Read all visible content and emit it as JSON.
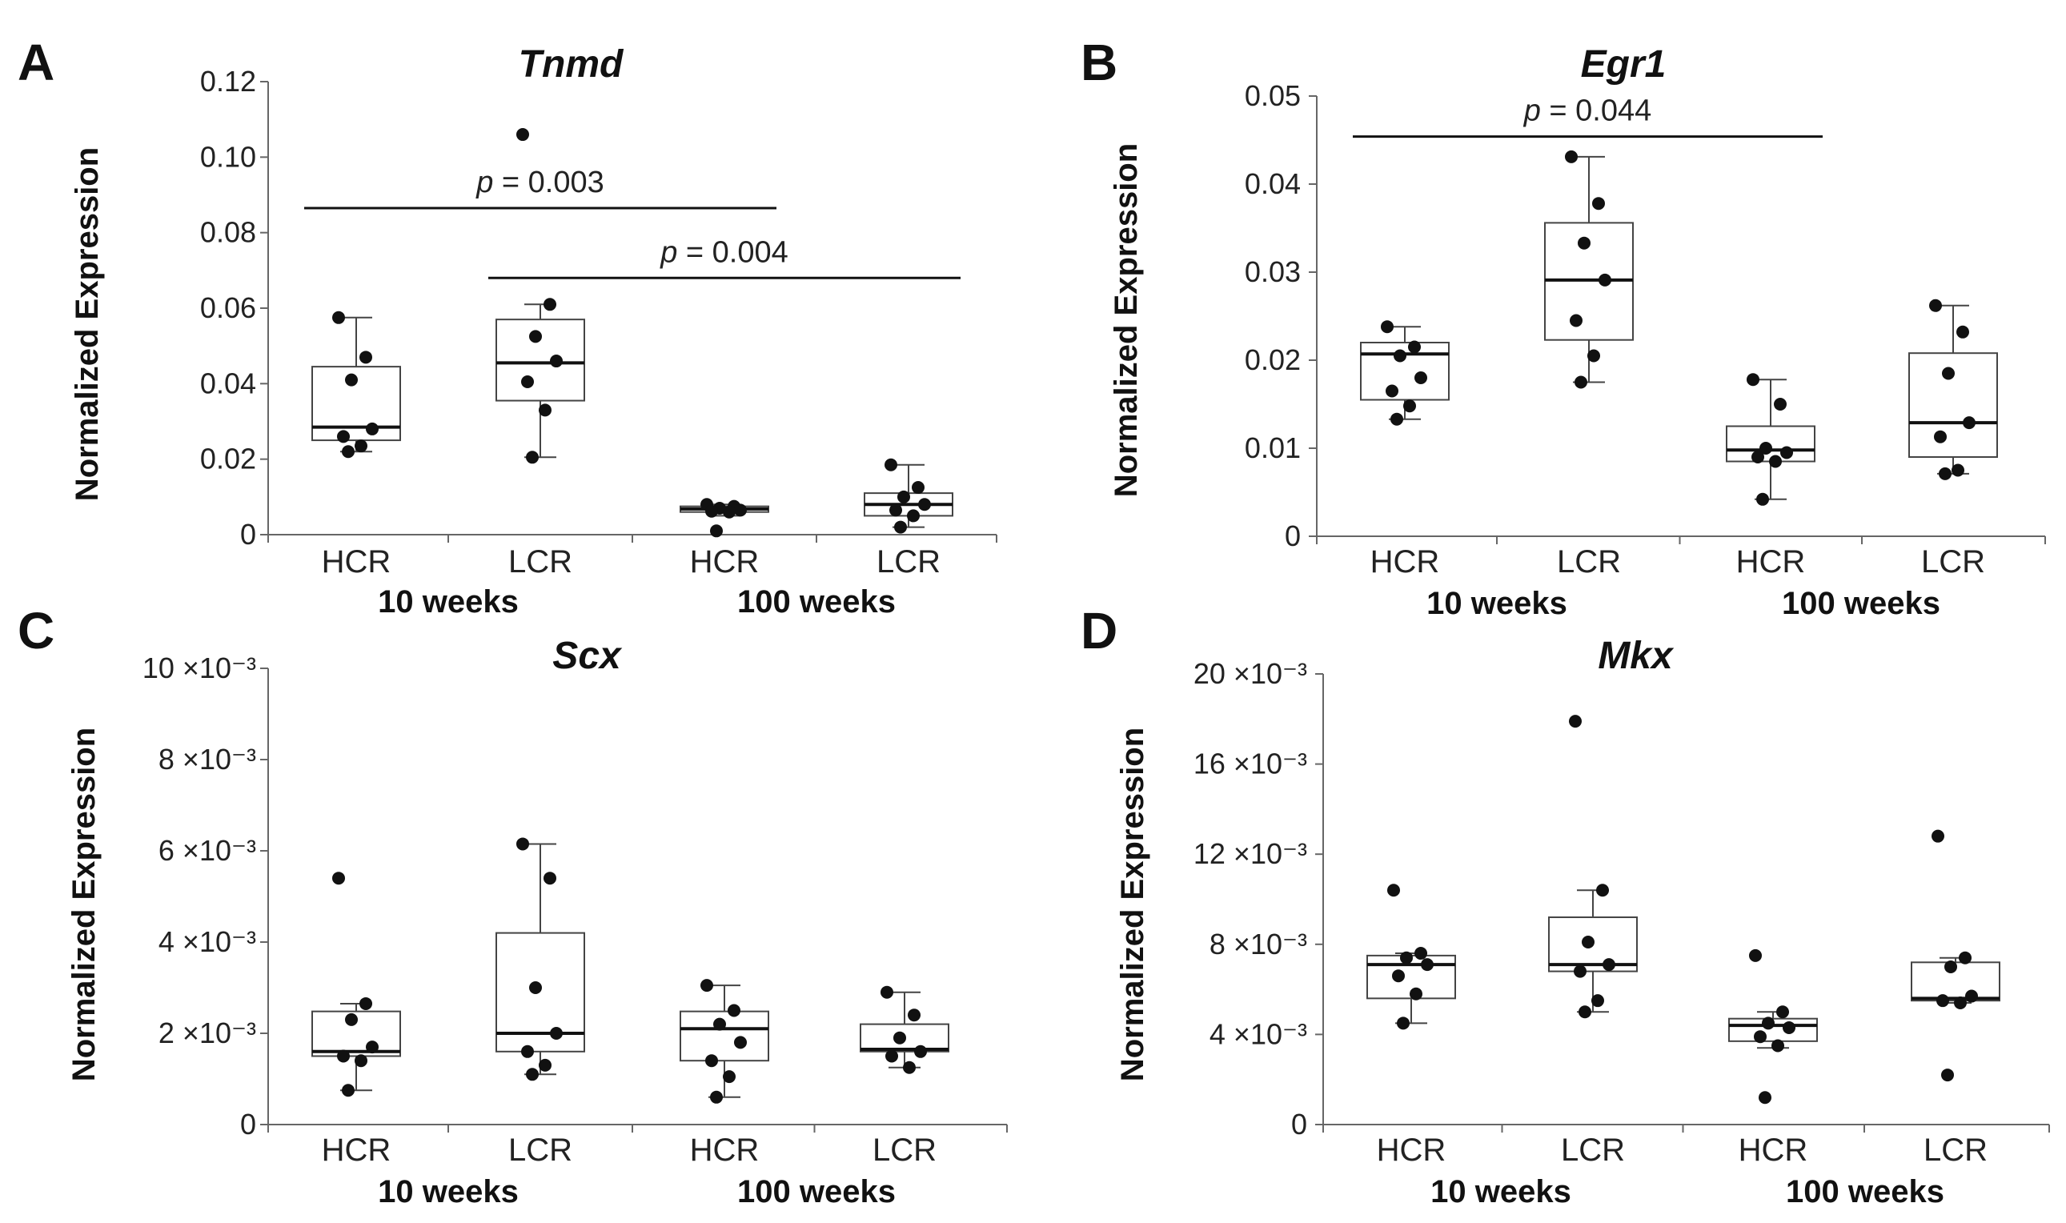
{
  "figure": {
    "ylabel": "Normalized Expression",
    "group_labels": [
      "HCR",
      "LCR",
      "HCR",
      "LCR"
    ],
    "age_labels": [
      "10 weeks",
      "100 weeks"
    ]
  },
  "chart_data": [
    {
      "type": "box",
      "panel": "A",
      "title": "Tnmd",
      "ylabel": "Normalized Expression",
      "ylim": [
        0,
        0.12
      ],
      "yticks": [
        0,
        0.02,
        0.04,
        0.06,
        0.08,
        0.1,
        0.12
      ],
      "ytick_labels": [
        "0",
        "0.02",
        "0.04",
        "0.06",
        "0.08",
        "0.10",
        "0.12"
      ],
      "categories": [
        "HCR",
        "LCR",
        "HCR",
        "LCR"
      ],
      "ages": [
        "10 weeks",
        "10 weeks",
        "100 weeks",
        "100 weeks"
      ],
      "boxes": [
        {
          "min": 0.022,
          "q1": 0.025,
          "median": 0.0285,
          "q3": 0.0445,
          "max": 0.0575,
          "points": [
            0.0575,
            0.047,
            0.041,
            0.028,
            0.026,
            0.0235,
            0.022
          ]
        },
        {
          "min": 0.0205,
          "q1": 0.0355,
          "median": 0.0455,
          "q3": 0.057,
          "max": 0.061,
          "points": [
            0.106,
            0.061,
            0.0525,
            0.046,
            0.0405,
            0.033,
            0.0205
          ]
        },
        {
          "min": 0.005,
          "q1": 0.006,
          "median": 0.0068,
          "q3": 0.0075,
          "max": 0.008,
          "points": [
            0.008,
            0.0075,
            0.007,
            0.0065,
            0.0062,
            0.006,
            0.001
          ]
        },
        {
          "min": 0.002,
          "q1": 0.005,
          "median": 0.008,
          "q3": 0.011,
          "max": 0.0185,
          "points": [
            0.0185,
            0.0125,
            0.01,
            0.008,
            0.0065,
            0.005,
            0.002
          ]
        }
      ],
      "significance": [
        {
          "from": 0,
          "to": 2,
          "y": 0.0865,
          "label_p": "p",
          "label_rest": " = 0.003"
        },
        {
          "from": 1,
          "to": 3,
          "y": 0.068,
          "label_p": "p",
          "label_rest": " = 0.004"
        }
      ]
    },
    {
      "type": "box",
      "panel": "B",
      "title": "Egr1",
      "ylabel": "Normalized Expression",
      "ylim": [
        0,
        0.05
      ],
      "yticks": [
        0,
        0.01,
        0.02,
        0.03,
        0.04,
        0.05
      ],
      "ytick_labels": [
        "0",
        "0.01",
        "0.02",
        "0.03",
        "0.04",
        "0.05"
      ],
      "categories": [
        "HCR",
        "LCR",
        "HCR",
        "LCR"
      ],
      "ages": [
        "10 weeks",
        "10 weeks",
        "100 weeks",
        "100 weeks"
      ],
      "boxes": [
        {
          "min": 0.0133,
          "q1": 0.0155,
          "median": 0.0207,
          "q3": 0.022,
          "max": 0.0238,
          "points": [
            0.0238,
            0.0215,
            0.0205,
            0.018,
            0.0165,
            0.0148,
            0.0133
          ]
        },
        {
          "min": 0.0175,
          "q1": 0.0223,
          "median": 0.0291,
          "q3": 0.0356,
          "max": 0.0431,
          "points": [
            0.0431,
            0.0378,
            0.0333,
            0.0291,
            0.0245,
            0.0205,
            0.0175
          ]
        },
        {
          "min": 0.0042,
          "q1": 0.0085,
          "median": 0.0098,
          "q3": 0.0125,
          "max": 0.0178,
          "points": [
            0.0178,
            0.015,
            0.01,
            0.0095,
            0.009,
            0.0085,
            0.0042
          ]
        },
        {
          "min": 0.0071,
          "q1": 0.009,
          "median": 0.0129,
          "q3": 0.0208,
          "max": 0.0262,
          "points": [
            0.0262,
            0.0232,
            0.0185,
            0.0129,
            0.0113,
            0.0075,
            0.0071
          ]
        }
      ],
      "significance": [
        {
          "from": 0,
          "to": 2,
          "y": 0.0454,
          "label_p": "p",
          "label_rest": " = 0.044"
        }
      ]
    },
    {
      "type": "box",
      "panel": "C",
      "title": "Scx",
      "ylabel": "Normalized Expression",
      "ylim": [
        0,
        0.01
      ],
      "yticks": [
        0,
        0.002,
        0.004,
        0.006,
        0.008,
        0.01
      ],
      "ytick_labels": [
        "0",
        "2 ×10⁻³",
        "4 ×10⁻³",
        "6 ×10⁻³",
        "8 ×10⁻³",
        "10 ×10⁻³"
      ],
      "categories": [
        "HCR",
        "LCR",
        "HCR",
        "LCR"
      ],
      "ages": [
        "10 weeks",
        "10 weeks",
        "100 weeks",
        "100 weeks"
      ],
      "boxes": [
        {
          "min": 0.00075,
          "q1": 0.0015,
          "median": 0.0016,
          "q3": 0.00248,
          "max": 0.00265,
          "points": [
            0.0054,
            0.00265,
            0.0023,
            0.0017,
            0.0015,
            0.0014,
            0.00075
          ]
        },
        {
          "min": 0.0011,
          "q1": 0.0016,
          "median": 0.002,
          "q3": 0.0042,
          "max": 0.00615,
          "points": [
            0.00615,
            0.0054,
            0.003,
            0.002,
            0.0016,
            0.0013,
            0.0011
          ]
        },
        {
          "min": 0.0006,
          "q1": 0.0014,
          "median": 0.0021,
          "q3": 0.00248,
          "max": 0.00305,
          "points": [
            0.00305,
            0.0025,
            0.0022,
            0.0018,
            0.0014,
            0.00105,
            0.0006
          ]
        },
        {
          "min": 0.00125,
          "q1": 0.0016,
          "median": 0.00165,
          "q3": 0.0022,
          "max": 0.0029,
          "points": [
            0.0029,
            0.0024,
            0.0019,
            0.0016,
            0.0015,
            0.00125
          ]
        }
      ],
      "significance": []
    },
    {
      "type": "box",
      "panel": "D",
      "title": "Mkx",
      "ylabel": "Normalized Expression",
      "ylim": [
        0,
        0.02
      ],
      "yticks": [
        0,
        0.004,
        0.008,
        0.012,
        0.016,
        0.02
      ],
      "ytick_labels": [
        "0",
        "4 ×10⁻³",
        "8 ×10⁻³",
        "12 ×10⁻³",
        "16 ×10⁻³",
        "20 ×10⁻³"
      ],
      "categories": [
        "HCR",
        "LCR",
        "HCR",
        "LCR"
      ],
      "ages": [
        "10 weeks",
        "10 weeks",
        "100 weeks",
        "100 weeks"
      ],
      "boxes": [
        {
          "min": 0.0045,
          "q1": 0.0056,
          "median": 0.0071,
          "q3": 0.0075,
          "max": 0.0076,
          "points": [
            0.0104,
            0.0076,
            0.0074,
            0.0071,
            0.0066,
            0.0058,
            0.0045
          ]
        },
        {
          "min": 0.005,
          "q1": 0.0068,
          "median": 0.0071,
          "q3": 0.0092,
          "max": 0.0104,
          "points": [
            0.0179,
            0.0104,
            0.0081,
            0.0071,
            0.0068,
            0.0055,
            0.005
          ]
        },
        {
          "min": 0.0034,
          "q1": 0.0037,
          "median": 0.0044,
          "q3": 0.0047,
          "max": 0.005,
          "points": [
            0.0075,
            0.005,
            0.0045,
            0.0043,
            0.0039,
            0.0035,
            0.0012
          ]
        },
        {
          "min": 0.0054,
          "q1": 0.0055,
          "median": 0.0056,
          "q3": 0.0072,
          "max": 0.0074,
          "points": [
            0.0128,
            0.0074,
            0.007,
            0.0057,
            0.0055,
            0.0054,
            0.0022
          ]
        }
      ],
      "significance": []
    }
  ]
}
